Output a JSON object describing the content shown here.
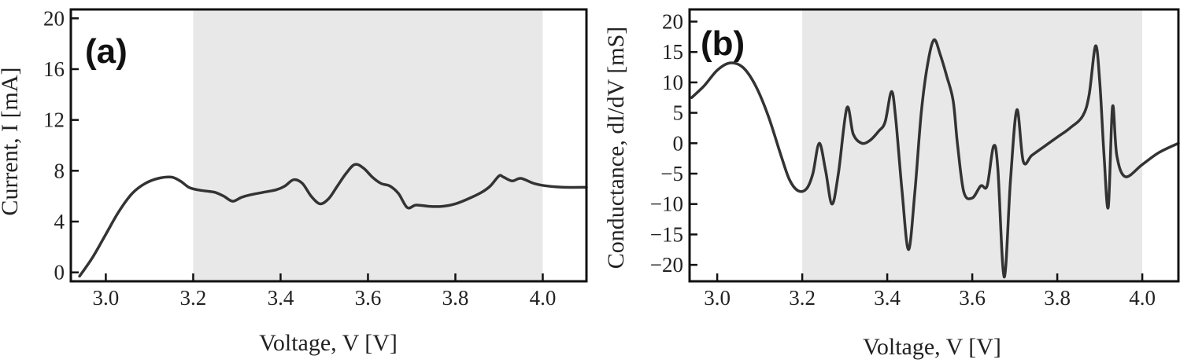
{
  "chart_data": [
    {
      "type": "line",
      "panel_label": "(a)",
      "xlabel": "Voltage, V [V]",
      "ylabel": "Current, I [mA]",
      "xlim": [
        2.92,
        4.1
      ],
      "ylim": [
        -0.7,
        20.7
      ],
      "xticks": [
        3.0,
        3.2,
        3.4,
        3.6,
        3.8,
        4.0
      ],
      "xtick_labels": [
        "3.0",
        "3.2",
        "3.4",
        "3.6",
        "3.8",
        "4.0"
      ],
      "yticks": [
        0,
        4,
        8,
        12,
        16,
        20
      ],
      "ytick_labels": [
        "0",
        "4",
        "8",
        "12",
        "16",
        "20"
      ],
      "shaded_region": [
        3.2,
        4.0
      ],
      "grid": false,
      "series": [
        {
          "color": "#333333",
          "x": [
            2.94,
            2.97,
            3.0,
            3.03,
            3.06,
            3.09,
            3.12,
            3.15,
            3.17,
            3.19,
            3.21,
            3.23,
            3.25,
            3.27,
            3.29,
            3.31,
            3.33,
            3.36,
            3.39,
            3.41,
            3.43,
            3.45,
            3.47,
            3.49,
            3.51,
            3.53,
            3.55,
            3.57,
            3.59,
            3.61,
            3.63,
            3.65,
            3.67,
            3.69,
            3.71,
            3.74,
            3.77,
            3.8,
            3.83,
            3.86,
            3.88,
            3.9,
            3.91,
            3.93,
            3.95,
            3.98,
            4.01,
            4.05,
            4.1
          ],
          "y": [
            -0.3,
            1.2,
            3.0,
            4.8,
            6.2,
            7.0,
            7.4,
            7.5,
            7.2,
            6.7,
            6.5,
            6.4,
            6.3,
            6.0,
            5.6,
            5.9,
            6.1,
            6.3,
            6.5,
            6.8,
            7.3,
            7.0,
            6.0,
            5.4,
            5.8,
            6.8,
            7.8,
            8.5,
            8.2,
            7.5,
            7.0,
            6.8,
            6.2,
            5.1,
            5.3,
            5.2,
            5.2,
            5.4,
            5.8,
            6.3,
            6.8,
            7.6,
            7.5,
            7.2,
            7.4,
            7.0,
            6.8,
            6.7,
            6.7
          ]
        }
      ]
    },
    {
      "type": "line",
      "panel_label": "(b)",
      "xlabel": "Voltage, V [V]",
      "ylabel": "Conductance, dI/dV [mS]",
      "xlim": [
        2.935,
        4.085
      ],
      "ylim": [
        -22.7,
        22.0
      ],
      "xticks": [
        3.0,
        3.2,
        3.4,
        3.6,
        3.8,
        4.0
      ],
      "xtick_labels": [
        "3.0",
        "3.2",
        "3.4",
        "3.6",
        "3.8",
        "4.0"
      ],
      "yticks": [
        -20,
        -15,
        -10,
        -5,
        0,
        5,
        10,
        15,
        20
      ],
      "ytick_labels": [
        "−20",
        "−15",
        "−10",
        "−5",
        "0",
        "5",
        "10",
        "15",
        "20"
      ],
      "shaded_region": [
        3.2,
        4.0
      ],
      "grid": false,
      "series": [
        {
          "color": "#333333",
          "x": [
            2.94,
            2.97,
            3.0,
            3.03,
            3.06,
            3.09,
            3.12,
            3.15,
            3.17,
            3.19,
            3.21,
            3.225,
            3.24,
            3.255,
            3.27,
            3.285,
            3.305,
            3.32,
            3.34,
            3.36,
            3.38,
            3.395,
            3.41,
            3.42,
            3.435,
            3.45,
            3.465,
            3.48,
            3.495,
            3.51,
            3.525,
            3.54,
            3.555,
            3.565,
            3.58,
            3.6,
            3.62,
            3.635,
            3.65,
            3.66,
            3.675,
            3.69,
            3.705,
            3.72,
            3.74,
            3.77,
            3.8,
            3.83,
            3.86,
            3.875,
            3.89,
            3.9,
            3.91,
            3.92,
            3.93,
            3.94,
            3.96,
            4.0,
            4.04,
            4.085
          ],
          "y": [
            7.5,
            9.5,
            12.0,
            13.2,
            12.5,
            9.5,
            4.5,
            -2.0,
            -6.0,
            -7.8,
            -7.5,
            -5.0,
            0.0,
            -4.5,
            -10.0,
            -5.0,
            5.8,
            1.5,
            0.0,
            0.5,
            2.0,
            3.5,
            8.5,
            4.0,
            -8.0,
            -17.5,
            -8.0,
            5.0,
            13.0,
            17.0,
            14.5,
            11.0,
            7.0,
            0.0,
            -8.0,
            -9.0,
            -7.0,
            -7.0,
            -0.5,
            -4.0,
            -22.0,
            -6.0,
            5.5,
            -3.0,
            -2.0,
            -0.5,
            1.0,
            2.5,
            4.5,
            8.0,
            16.0,
            10.0,
            -2.0,
            -10.5,
            6.0,
            -2.0,
            -5.5,
            -3.5,
            -1.5,
            0.0
          ]
        }
      ]
    }
  ]
}
